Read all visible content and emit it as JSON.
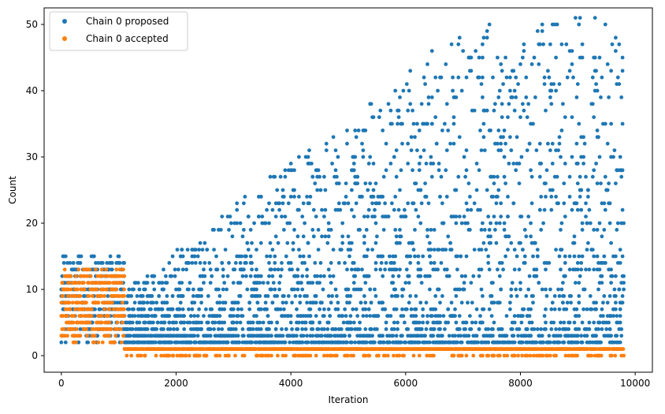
{
  "chart_data": {
    "type": "scatter",
    "title": "",
    "xlabel": "Iteration",
    "ylabel": "Count",
    "xlim": [
      -300,
      10300
    ],
    "ylim": [
      -2.5,
      52.5
    ],
    "xticks": [
      0,
      2000,
      4000,
      6000,
      8000,
      10000
    ],
    "yticks": [
      0,
      10,
      20,
      30,
      40,
      50
    ],
    "legend_position": "top-left",
    "grid": false,
    "series": [
      {
        "name": "Chain 0 proposed",
        "color": "#1f77b4",
        "segments": [
          {
            "x_start": 0,
            "x_end": 1100,
            "step": 15,
            "y_min": 2,
            "y_max": 15,
            "profile": "early"
          },
          {
            "x_start": 1100,
            "x_end": 9800,
            "step": 20,
            "y_min": 1,
            "y_max": 50,
            "profile": "late"
          }
        ]
      },
      {
        "name": "Chain 0 accepted",
        "color": "#ff7f0e",
        "segments": [
          {
            "x_start": 0,
            "x_end": 1100,
            "step": 15,
            "y_min": 2,
            "y_max": 13,
            "profile": "early"
          },
          {
            "x_start": 1100,
            "x_end": 9800,
            "step": 10,
            "y_min": 0,
            "y_max": 1,
            "profile": "flat"
          }
        ]
      }
    ]
  }
}
